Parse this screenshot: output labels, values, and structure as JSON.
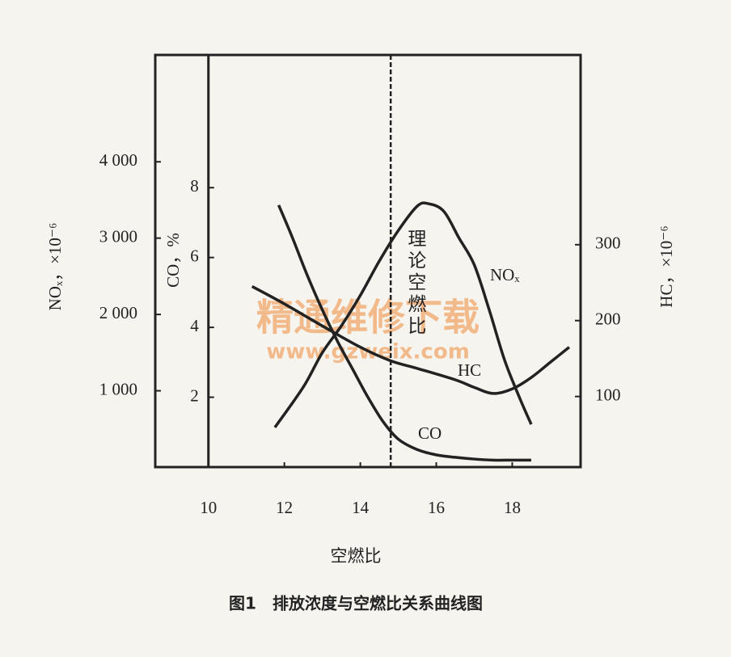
{
  "chart_data": {
    "type": "line",
    "title": "图1　排放浓度与空燃比关系曲线图",
    "xlabel": "空燃比",
    "xlim": [
      8.6,
      19.8
    ],
    "xticks": [
      10,
      12,
      14,
      16,
      18
    ],
    "ylabel": "NOₓ，×10⁻⁶",
    "ylim": [
      0,
      5400
    ],
    "yticks": [
      {
        "value": 1000,
        "label": "1 000"
      },
      {
        "value": 2000,
        "label": "2 000"
      },
      {
        "value": 3000,
        "label": "3 000"
      },
      {
        "value": 4000,
        "label": "4 000"
      }
    ],
    "co_axis": {
      "label": "CO，%",
      "x": 10,
      "lim": [
        0,
        11.8
      ],
      "ticks": [
        2,
        4,
        6,
        8
      ]
    },
    "y2label": "HC，×10⁻⁶",
    "y2lim": [
      7,
      550
    ],
    "y2ticks": [
      100,
      200,
      300
    ],
    "reference_line": {
      "x": 14.8,
      "label": "理论空燃比",
      "style": "dashed"
    },
    "series": [
      {
        "name": "NOₓ",
        "axis": "y",
        "color": "#222222",
        "x": [
          11.75,
          12.5,
          13.0,
          13.5,
          14.0,
          14.5,
          15.0,
          15.5,
          15.8,
          16.2,
          16.6,
          17.0,
          17.4,
          17.8,
          18.2,
          18.5
        ],
        "values": [
          520,
          1050,
          1500,
          1850,
          2250,
          2700,
          3100,
          3420,
          3450,
          3350,
          3000,
          2650,
          2050,
          1400,
          900,
          560
        ]
      },
      {
        "name": "HC",
        "axis": "y2",
        "color": "#222222",
        "x": [
          11.15,
          12,
          13,
          14,
          14.8,
          15.5,
          16.5,
          17,
          17.5,
          18,
          18.5,
          19,
          19.5
        ],
        "values": [
          245,
          222,
          193,
          165,
          147,
          137,
          122,
          112,
          104,
          110,
          125,
          145,
          165
        ]
      },
      {
        "name": "CO",
        "axis": "co",
        "color": "#222222",
        "x": [
          11.85,
          12.2,
          12.6,
          13.0,
          13.4,
          13.8,
          14.2,
          14.6,
          15.0,
          15.5,
          16.0,
          16.5,
          17.0,
          17.5,
          18.0,
          18.5
        ],
        "values": [
          7.5,
          6.6,
          5.5,
          4.5,
          3.6,
          2.8,
          2.0,
          1.3,
          0.8,
          0.5,
          0.35,
          0.28,
          0.23,
          0.2,
          0.2,
          0.2
        ]
      }
    ],
    "watermark": {
      "text": "精通维修下载",
      "url": "www.gzweix.com"
    }
  }
}
